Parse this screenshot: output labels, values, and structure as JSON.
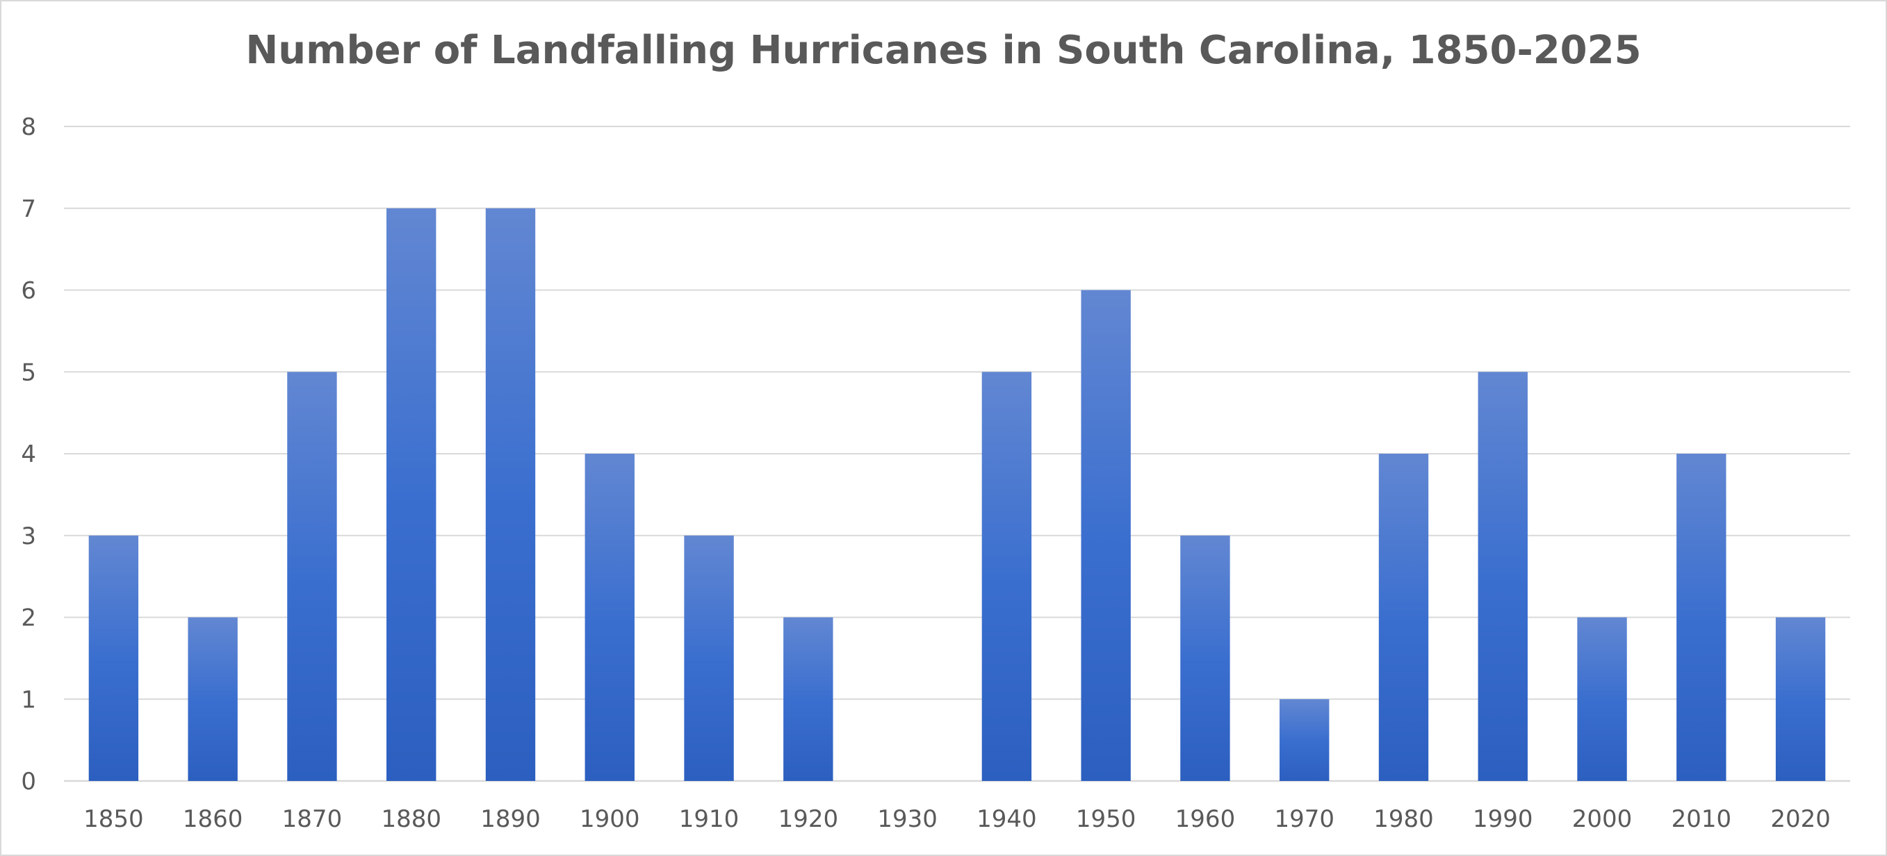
{
  "chart_data": {
    "type": "bar",
    "title": "Number of Landfalling Hurricanes in South Carolina, 1850-2025",
    "xlabel": "",
    "ylabel": "",
    "categories": [
      "1850",
      "1860",
      "1870",
      "1880",
      "1890",
      "1900",
      "1910",
      "1920",
      "1930",
      "1940",
      "1950",
      "1960",
      "1970",
      "1980",
      "1990",
      "2000",
      "2010",
      "2020"
    ],
    "values": [
      3,
      2,
      5,
      7,
      7,
      4,
      3,
      2,
      0,
      5,
      6,
      3,
      1,
      4,
      5,
      2,
      4,
      2
    ],
    "ylim": [
      0,
      8
    ],
    "yticks": [
      "0",
      "1",
      "2",
      "3",
      "4",
      "5",
      "6",
      "7",
      "8"
    ],
    "grid": true,
    "legend": "none",
    "colors": {
      "bar_top": "#6287d2",
      "bar_mid": "#3b6fcf",
      "bar_bottom": "#2c5fbf",
      "grid": "#d9d9d9",
      "text": "#595959"
    }
  }
}
